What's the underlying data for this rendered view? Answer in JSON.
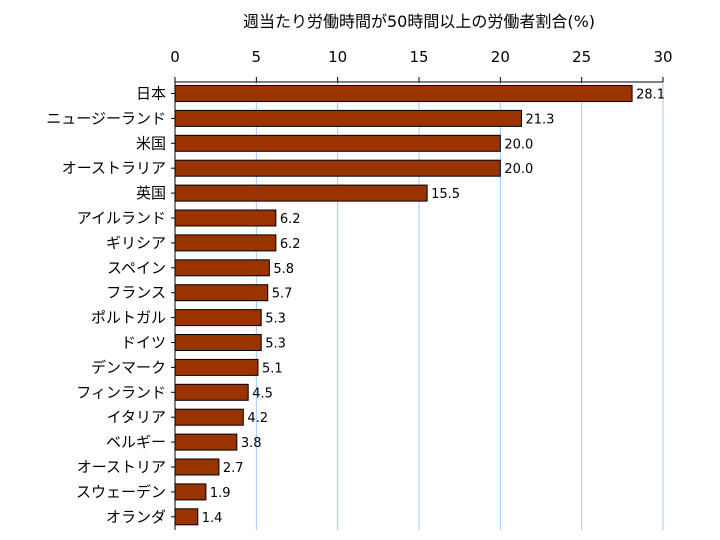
{
  "chart_data": {
    "type": "bar",
    "orientation": "horizontal",
    "title": "週当たり労働時間が50時間以上の労働者割合(%)",
    "xlabel": "",
    "ylabel": "",
    "xlim": [
      0,
      30
    ],
    "ticks": [
      0,
      5,
      10,
      15,
      20,
      25,
      30
    ],
    "grid": true,
    "categories": [
      "日本",
      "ニュージーランド",
      "米国",
      "オーストラリア",
      "英国",
      "アイルランド",
      "ギリシア",
      "スペイン",
      "フランス",
      "ポルトガル",
      "ドイツ",
      "デンマーク",
      "フィンランド",
      "イタリア",
      "ベルギー",
      "オーストリア",
      "スウェーデン",
      "オランダ"
    ],
    "values": [
      28.1,
      21.3,
      20.0,
      20.0,
      15.5,
      6.2,
      6.2,
      5.8,
      5.7,
      5.3,
      5.3,
      5.1,
      4.5,
      4.2,
      3.8,
      2.7,
      1.9,
      1.4
    ],
    "value_labels": [
      "28.1",
      "21.3",
      "20.0",
      "20.0",
      "15.5",
      "6.2",
      "6.2",
      "5.8",
      "5.7",
      "5.3",
      "5.3",
      "5.1",
      "4.5",
      "4.2",
      "3.8",
      "2.7",
      "1.9",
      "1.4"
    ],
    "colors": {
      "bar_fill": "#993300",
      "bar_stroke": "#000000",
      "grid": "#99ccff",
      "axis": "#000000"
    }
  }
}
